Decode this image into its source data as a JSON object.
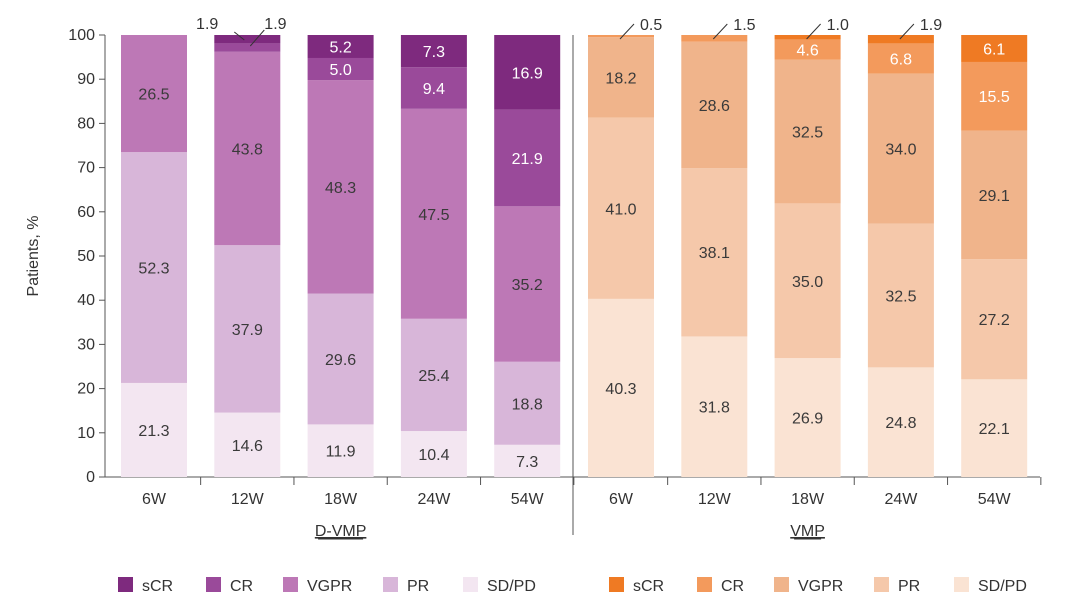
{
  "chart_data": {
    "type": "bar",
    "stacked": true,
    "ylabel": "Patients, %",
    "ylim": [
      0,
      100
    ],
    "yticks": [
      0,
      10,
      20,
      30,
      40,
      50,
      60,
      70,
      80,
      90,
      100
    ],
    "categories": [
      "6W",
      "12W",
      "18W",
      "24W",
      "54W"
    ],
    "stack_order": [
      "SD/PD",
      "PR",
      "VGPR",
      "CR",
      "sCR"
    ],
    "groups": [
      {
        "name": "D-VMP",
        "colors": {
          "sCR": "#7e2a7e",
          "CR": "#9a4a9a",
          "VGPR": "#bd78b6",
          "PR": "#d8b6d9",
          "SD/PD": "#f3e6f1"
        },
        "series": [
          {
            "name": "SD/PD",
            "values": [
              21.3,
              14.6,
              11.9,
              10.4,
              7.3
            ]
          },
          {
            "name": "PR",
            "values": [
              52.3,
              37.9,
              29.6,
              25.4,
              18.8
            ]
          },
          {
            "name": "VGPR",
            "values": [
              26.5,
              43.8,
              48.3,
              47.5,
              35.2
            ]
          },
          {
            "name": "CR",
            "values": [
              0,
              1.9,
              5.0,
              9.4,
              21.9
            ]
          },
          {
            "name": "sCR",
            "values": [
              0,
              1.9,
              5.2,
              7.3,
              16.9
            ]
          }
        ],
        "callouts": [
          {
            "category": "12W",
            "label": "1.9"
          },
          {
            "category": "12W",
            "label": "1.9"
          }
        ]
      },
      {
        "name": "VMP",
        "colors": {
          "sCR": "#ef7a23",
          "CR": "#f39a5c",
          "VGPR": "#f0b48b",
          "PR": "#f5c8aa",
          "SD/PD": "#fae3d3"
        },
        "series": [
          {
            "name": "SD/PD",
            "values": [
              40.3,
              31.8,
              26.9,
              24.8,
              22.1
            ]
          },
          {
            "name": "PR",
            "values": [
              41.0,
              38.1,
              35.0,
              32.5,
              27.2
            ]
          },
          {
            "name": "VGPR",
            "values": [
              18.2,
              28.6,
              32.5,
              34.0,
              29.1
            ]
          },
          {
            "name": "CR",
            "values": [
              0.5,
              1.5,
              4.6,
              6.8,
              15.5
            ]
          },
          {
            "name": "sCR",
            "values": [
              0,
              0,
              1.0,
              1.9,
              6.1
            ]
          }
        ],
        "callouts": [
          {
            "category": "6W",
            "label": "0.5"
          },
          {
            "category": "12W",
            "label": "1.5"
          },
          {
            "category": "18W",
            "label": "1.0"
          },
          {
            "category": "24W",
            "label": "1.9"
          }
        ]
      }
    ],
    "legend": [
      {
        "group": "D-VMP",
        "items": [
          "sCR",
          "CR",
          "VGPR",
          "PR",
          "SD/PD"
        ]
      },
      {
        "group": "VMP",
        "items": [
          "sCR",
          "CR",
          "VGPR",
          "PR",
          "SD/PD"
        ]
      }
    ]
  }
}
